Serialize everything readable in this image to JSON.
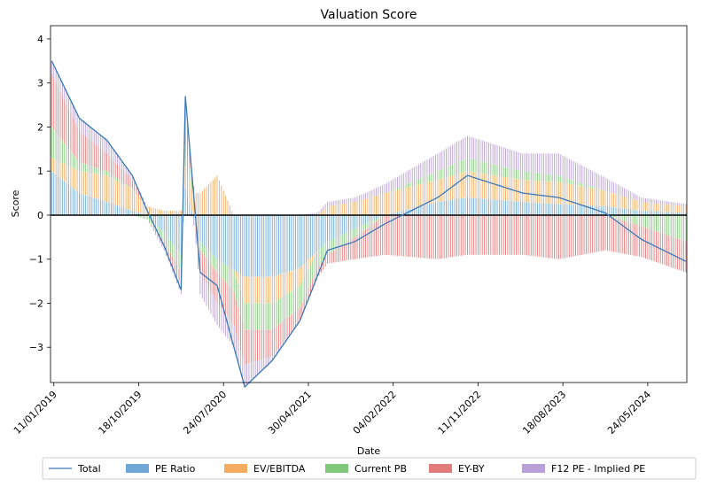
{
  "chart_data": {
    "type": "bar",
    "stacked": true,
    "title": "Valuation Score",
    "xlabel": "Date",
    "ylabel": "Score",
    "ylim": [
      -3.8,
      4.3
    ],
    "xlim": [
      "2018-12-31",
      "2024-09-30"
    ],
    "yticks": [
      -3,
      -2,
      -1,
      0,
      1,
      2,
      3,
      4
    ],
    "ytick_labels": [
      "−3",
      "−2",
      "−1",
      "0",
      "1",
      "2",
      "3",
      "4"
    ],
    "xticks": [
      "2019-01-11",
      "2019-10-18",
      "2020-07-24",
      "2021-04-30",
      "2022-02-04",
      "2022-11-11",
      "2023-08-18",
      "2024-05-24"
    ],
    "xtick_labels": [
      "11/01/2019",
      "18/10/2019",
      "24/07/2020",
      "30/04/2021",
      "04/02/2022",
      "11/11/2022",
      "18/08/2023",
      "24/05/2024"
    ],
    "zero_line": true,
    "grid": false,
    "legend_position": "bottom",
    "frequency": "weekly",
    "series": [
      {
        "name": "PE Ratio",
        "color": "#6fa8d6",
        "points": [
          [
            "2019-01-04",
            1.0
          ],
          [
            "2019-04-05",
            0.5
          ],
          [
            "2019-07-05",
            0.3
          ],
          [
            "2019-09-27",
            0.1
          ],
          [
            "2019-11-15",
            0.0
          ],
          [
            "2020-01-10",
            -0.4
          ],
          [
            "2020-03-06",
            -0.9
          ],
          [
            "2020-03-20",
            0.6
          ],
          [
            "2020-05-08",
            -0.6
          ],
          [
            "2020-07-03",
            -1.0
          ],
          [
            "2020-10-02",
            -1.4
          ],
          [
            "2021-01-01",
            -1.4
          ],
          [
            "2021-04-02",
            -1.2
          ],
          [
            "2021-07-02",
            -0.6
          ],
          [
            "2021-10-01",
            -0.3
          ],
          [
            "2022-01-07",
            0.0
          ],
          [
            "2022-07-01",
            0.3
          ],
          [
            "2022-10-07",
            0.4
          ],
          [
            "2023-04-07",
            0.3
          ],
          [
            "2023-08-04",
            0.25
          ],
          [
            "2024-01-05",
            0.2
          ],
          [
            "2024-05-03",
            0.1
          ],
          [
            "2024-09-27",
            0.05
          ]
        ]
      },
      {
        "name": "EV/EBITDA",
        "color": "#f5ab60",
        "points": [
          [
            "2019-01-04",
            0.3
          ],
          [
            "2019-04-05",
            0.5
          ],
          [
            "2019-07-05",
            0.6
          ],
          [
            "2019-09-27",
            0.5
          ],
          [
            "2019-11-15",
            0.2
          ],
          [
            "2020-01-10",
            0.1
          ],
          [
            "2020-03-06",
            0.1
          ],
          [
            "2020-03-20",
            0.5
          ],
          [
            "2020-05-08",
            0.5
          ],
          [
            "2020-07-03",
            0.9
          ],
          [
            "2020-10-02",
            -0.6
          ],
          [
            "2021-01-01",
            -0.6
          ],
          [
            "2021-04-02",
            -0.4
          ],
          [
            "2021-07-02",
            0.2
          ],
          [
            "2021-10-01",
            0.3
          ],
          [
            "2022-01-07",
            0.5
          ],
          [
            "2022-07-01",
            0.5
          ],
          [
            "2022-10-07",
            0.6
          ],
          [
            "2023-04-07",
            0.5
          ],
          [
            "2023-08-04",
            0.5
          ],
          [
            "2024-01-05",
            0.35
          ],
          [
            "2024-05-03",
            0.2
          ],
          [
            "2024-09-27",
            0.15
          ]
        ]
      },
      {
        "name": "Current PB",
        "color": "#82c87a",
        "points": [
          [
            "2019-01-04",
            0.7
          ],
          [
            "2019-04-05",
            0.2
          ],
          [
            "2019-07-05",
            0.1
          ],
          [
            "2019-09-27",
            0.0
          ],
          [
            "2019-11-15",
            -0.1
          ],
          [
            "2020-01-10",
            -0.2
          ],
          [
            "2020-03-06",
            -0.4
          ],
          [
            "2020-03-20",
            0.5
          ],
          [
            "2020-05-08",
            -0.2
          ],
          [
            "2020-07-03",
            -0.3
          ],
          [
            "2020-10-02",
            -0.6
          ],
          [
            "2021-01-01",
            -0.6
          ],
          [
            "2021-04-02",
            -0.5
          ],
          [
            "2021-07-02",
            -0.3
          ],
          [
            "2021-10-01",
            -0.2
          ],
          [
            "2022-01-07",
            0.0
          ],
          [
            "2022-07-01",
            0.2
          ],
          [
            "2022-10-07",
            0.3
          ],
          [
            "2023-04-07",
            0.2
          ],
          [
            "2023-08-04",
            0.15
          ],
          [
            "2024-01-05",
            0.0
          ],
          [
            "2024-05-03",
            -0.25
          ],
          [
            "2024-09-27",
            -0.6
          ]
        ]
      },
      {
        "name": "EY-BY",
        "color": "#e37b7b",
        "points": [
          [
            "2019-01-04",
            1.2
          ],
          [
            "2019-04-05",
            0.7
          ],
          [
            "2019-07-05",
            0.4
          ],
          [
            "2019-09-27",
            0.2
          ],
          [
            "2019-11-15",
            0.0
          ],
          [
            "2020-01-10",
            -0.1
          ],
          [
            "2020-03-06",
            -0.3
          ],
          [
            "2020-03-20",
            0.8
          ],
          [
            "2020-05-08",
            -0.5
          ],
          [
            "2020-07-03",
            -0.7
          ],
          [
            "2020-10-02",
            -0.8
          ],
          [
            "2021-01-01",
            -0.6
          ],
          [
            "2021-04-02",
            -0.3
          ],
          [
            "2021-07-02",
            -0.2
          ],
          [
            "2021-10-01",
            -0.5
          ],
          [
            "2022-01-07",
            -0.9
          ],
          [
            "2022-07-01",
            -1.0
          ],
          [
            "2022-10-07",
            -0.9
          ],
          [
            "2023-04-07",
            -0.9
          ],
          [
            "2023-08-04",
            -1.0
          ],
          [
            "2024-01-05",
            -0.8
          ],
          [
            "2024-05-03",
            -0.7
          ],
          [
            "2024-09-27",
            -0.7
          ]
        ]
      },
      {
        "name": "F12 PE - Implied PE",
        "color": "#b9a0d9",
        "points": [
          [
            "2019-01-04",
            0.3
          ],
          [
            "2019-04-05",
            0.3
          ],
          [
            "2019-07-05",
            0.3
          ],
          [
            "2019-09-27",
            0.1
          ],
          [
            "2019-11-15",
            0.0
          ],
          [
            "2020-01-10",
            -0.1
          ],
          [
            "2020-03-06",
            -0.2
          ],
          [
            "2020-03-20",
            0.3
          ],
          [
            "2020-05-08",
            -0.5
          ],
          [
            "2020-07-03",
            -0.5
          ],
          [
            "2020-10-02",
            -0.5
          ],
          [
            "2021-01-01",
            -0.1
          ],
          [
            "2021-04-02",
            0.0
          ],
          [
            "2021-07-02",
            0.1
          ],
          [
            "2021-10-01",
            0.1
          ],
          [
            "2022-01-07",
            0.2
          ],
          [
            "2022-07-01",
            0.4
          ],
          [
            "2022-10-07",
            0.5
          ],
          [
            "2023-04-07",
            0.4
          ],
          [
            "2023-08-04",
            0.5
          ],
          [
            "2024-01-05",
            0.3
          ],
          [
            "2024-05-03",
            0.1
          ],
          [
            "2024-09-27",
            0.05
          ]
        ]
      }
    ],
    "total": {
      "name": "Total",
      "color": "#3a78b8"
    }
  }
}
